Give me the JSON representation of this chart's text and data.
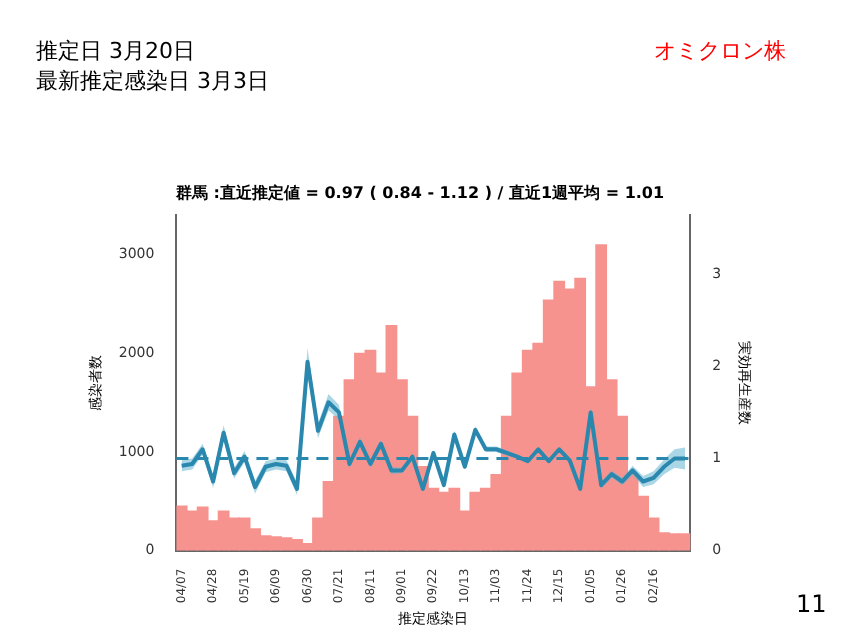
{
  "chart_data": {
    "type": "bar",
    "title": "群馬 :直近推定値 = 0.97 ( 0.84 - 1.12 ) / 直近1週平均 = 1.01",
    "xlabel": "推定感染日",
    "ylabel": "感染者数",
    "y2label": "実効再生産数",
    "annotations": [
      "推定日  3月20日",
      "最新推定感染日  3月3日",
      "オミクロン株",
      "11"
    ],
    "categories": [
      "04/07",
      null,
      null,
      "04/28",
      null,
      null,
      "05/19",
      null,
      null,
      "06/09",
      null,
      null,
      "06/30",
      null,
      null,
      "07/21",
      null,
      null,
      "08/11",
      null,
      null,
      "09/01",
      null,
      null,
      "09/22",
      null,
      null,
      "10/13",
      null,
      null,
      "11/03",
      null,
      null,
      "11/24",
      null,
      null,
      "12/15",
      null,
      null,
      "01/05",
      null,
      null,
      "01/26",
      null,
      null,
      "02/16",
      null,
      null,
      null
    ],
    "series": [
      {
        "color": "#f7938f",
        "values": [
          450,
          400,
          440,
          300,
          400,
          330,
          330,
          220,
          150,
          140,
          130,
          110,
          70,
          330,
          700,
          1360,
          1730,
          2000,
          2030,
          1800,
          2280,
          1730,
          1360,
          850,
          630,
          590,
          630,
          400,
          590,
          630,
          770,
          1360,
          1800,
          2030,
          2100,
          2540,
          2730,
          2650,
          2760,
          1660,
          3100,
          1730,
          1360,
          770,
          550,
          330,
          180,
          170,
          170
        ]
      },
      {
        "type": "line",
        "axis": "y2",
        "color": "#2a87ad",
        "values": [
          0.92,
          0.94,
          1.1,
          0.75,
          1.28,
          0.84,
          1.02,
          0.69,
          0.91,
          0.94,
          0.92,
          0.67,
          2.05,
          1.3,
          1.61,
          1.5,
          0.94,
          1.18,
          0.94,
          1.16,
          0.87,
          0.87,
          1.02,
          0.67,
          1.06,
          0.71,
          1.26,
          0.91,
          1.31,
          1.1,
          1.1,
          1.06,
          1.02,
          0.97,
          1.1,
          0.97,
          1.1,
          0.98,
          0.67,
          1.5,
          0.71,
          0.83,
          0.75,
          0.87,
          0.75,
          0.79,
          0.91,
          1.0,
          1.0
        ],
        "lower": [
          0.86,
          0.88,
          1.04,
          0.68,
          1.2,
          0.78,
          0.96,
          0.62,
          0.85,
          0.88,
          0.86,
          0.6,
          1.9,
          1.22,
          1.52,
          1.42,
          0.89,
          1.13,
          0.9,
          1.12,
          0.83,
          0.84,
          0.99,
          0.64,
          1.03,
          0.68,
          1.22,
          0.88,
          1.27,
          1.07,
          1.07,
          1.03,
          1.0,
          0.95,
          1.08,
          0.95,
          1.08,
          0.96,
          0.64,
          1.45,
          0.67,
          0.79,
          0.71,
          0.82,
          0.69,
          0.72,
          0.83,
          0.9,
          0.88
        ],
        "upper": [
          0.98,
          1.0,
          1.16,
          0.82,
          1.36,
          0.9,
          1.08,
          0.76,
          0.97,
          1.0,
          0.98,
          0.74,
          2.2,
          1.38,
          1.7,
          1.58,
          0.99,
          1.23,
          0.98,
          1.2,
          0.91,
          0.9,
          1.05,
          0.7,
          1.09,
          0.74,
          1.3,
          0.94,
          1.35,
          1.13,
          1.13,
          1.09,
          1.04,
          0.99,
          1.12,
          0.99,
          1.12,
          1.0,
          0.7,
          1.55,
          0.75,
          0.87,
          0.79,
          0.92,
          0.81,
          0.86,
          0.99,
          1.1,
          1.12
        ]
      }
    ],
    "ylim": [
      0,
      3400
    ],
    "yticks": [
      0,
      1000,
      2000,
      3000
    ],
    "y2lim": [
      0,
      3.64
    ],
    "y2ticks": [
      0,
      1,
      2,
      3
    ],
    "ref_lines": [
      {
        "axis": "y2",
        "value": 1,
        "color": "#2a87ad",
        "line_style": "dashed"
      }
    ],
    "grid": false,
    "legend": false
  }
}
